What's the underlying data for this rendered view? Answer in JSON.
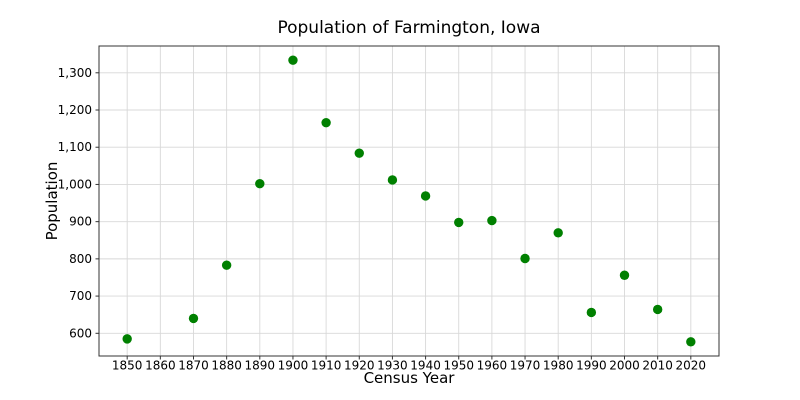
{
  "chart_data": {
    "type": "scatter",
    "title": "Population of Farmington, Iowa",
    "xlabel": "Census Year",
    "ylabel": "Population",
    "x": [
      1850,
      1870,
      1880,
      1890,
      1900,
      1910,
      1920,
      1930,
      1940,
      1950,
      1960,
      1970,
      1980,
      1990,
      2000,
      2010,
      2020
    ],
    "y": [
      585,
      640,
      783,
      1002,
      1334,
      1166,
      1084,
      1012,
      969,
      898,
      903,
      801,
      870,
      656,
      756,
      664,
      577
    ],
    "xlim": [
      1841.5,
      2028.5
    ],
    "ylim": [
      539,
      1372
    ],
    "xticks": [
      1850,
      1860,
      1870,
      1880,
      1890,
      1900,
      1910,
      1920,
      1930,
      1940,
      1950,
      1960,
      1970,
      1980,
      1990,
      2000,
      2010,
      2020
    ],
    "xtick_labels": [
      "1850",
      "1860",
      "1870",
      "1880",
      "1890",
      "1900",
      "1910",
      "1920",
      "1930",
      "1940",
      "1950",
      "1960",
      "1970",
      "1980",
      "1990",
      "2000",
      "2010",
      "2020"
    ],
    "yticks": [
      600,
      700,
      800,
      900,
      1000,
      1100,
      1200,
      1300
    ],
    "ytick_labels": [
      "600",
      "700",
      "800",
      "900",
      "1,000",
      "1,100",
      "1,200",
      "1,300"
    ],
    "grid": true,
    "legend": false,
    "marker_color": "#008000",
    "grid_color": "#d8d8d8",
    "axis_color": "#333333",
    "text_color": "#000000"
  }
}
